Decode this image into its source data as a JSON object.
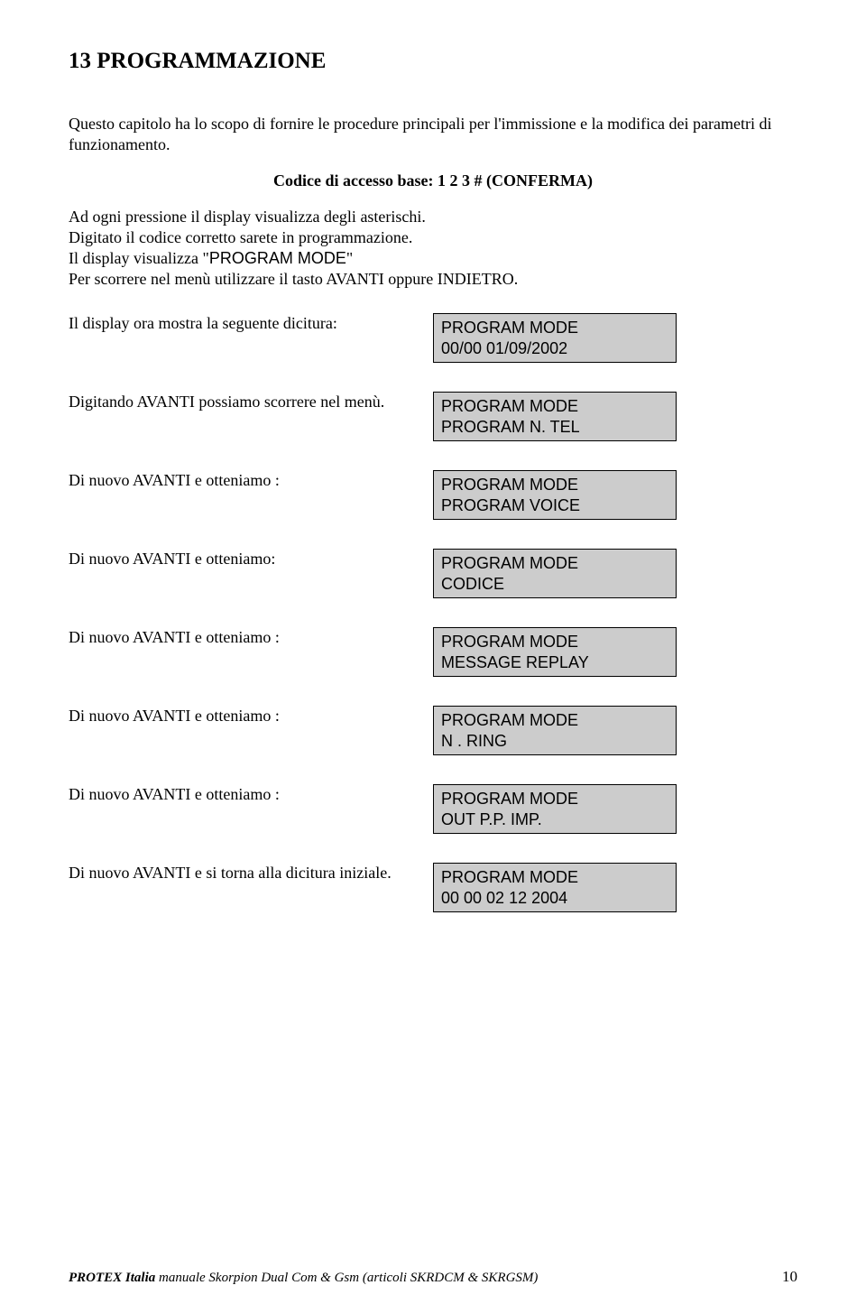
{
  "heading": "13   PROGRAMMAZIONE",
  "intro": "Questo capitolo ha lo scopo di fornire le procedure principali per l'immissione e la modifica dei parametri di funzionamento.",
  "access_code_line": "Codice di accesso base: 1 2 3   # (CONFERMA)",
  "para2a": "Ad ogni pressione il display visualizza degli asterischi.",
  "para2b": "Digitato il codice corretto sarete in programmazione.",
  "para2c_prefix": "Il display visualizza \"",
  "para2c_mono": "PROGRAM  MODE",
  "para2c_suffix": "\"",
  "para2d": "Per scorrere nel menù utilizzare il tasto AVANTI oppure INDIETRO.",
  "rows": [
    {
      "label": "Il display ora mostra la seguente dicitura:",
      "line1": "PROGRAM MODE",
      "line2": "00/00   01/09/2002"
    },
    {
      "label": "Digitando AVANTI possiamo scorrere nel menù.",
      "line1": "PROGRAM MODE",
      "line2": "PROGRAM  N. TEL"
    },
    {
      "label": "Di nuovo AVANTI e otteniamo :",
      "line1": "PROGRAM MODE",
      "line2": "PROGRAM  VOICE"
    },
    {
      "label": "Di nuovo AVANTI e otteniamo:",
      "line1": "PROGRAM MODE",
      "line2": "CODICE"
    },
    {
      "label": "Di nuovo AVANTI e otteniamo :",
      "line1": "PROGRAM MODE",
      "line2": "MESSAGE  REPLAY"
    },
    {
      "label": "Di nuovo AVANTI e otteniamo :",
      "line1": "PROGRAM MODE",
      "line2": "N .  RING"
    },
    {
      "label": "Di nuovo AVANTI e otteniamo :",
      "line1": "PROGRAM MODE",
      "line2": "OUT  P.P.   IMP."
    },
    {
      "label": "Di nuovo AVANTI e si torna alla dicitura iniziale.",
      "line1": "PROGRAM MODE",
      "line2": "00 00  02 12 2004"
    }
  ],
  "footer_bold": "PROTEX Italia",
  "footer_rest": "   manuale Skorpion Dual Com  & Gsm (articoli SKRDCM & SKRGSM)",
  "page_no": "10"
}
